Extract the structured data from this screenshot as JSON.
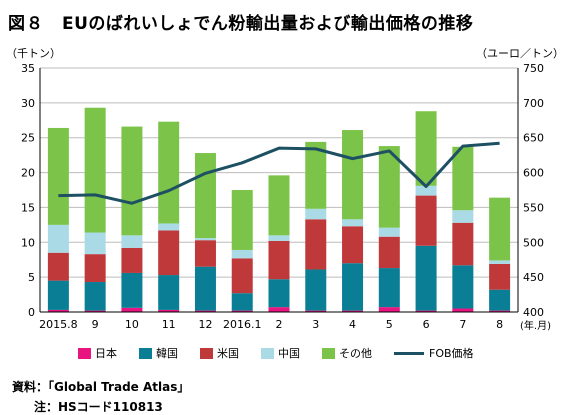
{
  "figure": {
    "number": "図８",
    "title": "EUのばれいしょでん粉輸出量および輸出価格の推移"
  },
  "units": {
    "left": "（千トン）",
    "right": "（ユーロ／トン）"
  },
  "chart_data": {
    "type": "bar",
    "stacked": true,
    "categories": [
      "2015.8",
      "9",
      "10",
      "11",
      "12",
      "2016.1",
      "2",
      "3",
      "4",
      "5",
      "6",
      "7",
      "8"
    ],
    "x_unit_label": "(年.月)",
    "ylim": [
      0,
      35
    ],
    "yticks": [
      0,
      5,
      10,
      15,
      20,
      25,
      30,
      35
    ],
    "y2lim": [
      400,
      750
    ],
    "y2ticks": [
      400,
      450,
      500,
      550,
      600,
      650,
      700,
      750
    ],
    "grid": true,
    "series": [
      {
        "name": "日本",
        "color": "#e8147f",
        "values": [
          0.3,
          0.2,
          0.6,
          0.3,
          0.2,
          0.2,
          0.7,
          0.2,
          0.2,
          0.7,
          0.2,
          0.5,
          0.2
        ]
      },
      {
        "name": "韓国",
        "color": "#0a7e95",
        "values": [
          4.2,
          4.1,
          5.0,
          5.0,
          6.3,
          2.5,
          4.0,
          5.9,
          6.8,
          5.6,
          9.3,
          6.2,
          3.0
        ]
      },
      {
        "name": "米国",
        "color": "#c0393a",
        "values": [
          4.0,
          4.0,
          3.6,
          6.4,
          3.8,
          5.0,
          5.5,
          7.2,
          5.3,
          4.5,
          7.2,
          6.1,
          3.7
        ]
      },
      {
        "name": "中国",
        "color": "#a9dae5",
        "values": [
          4.0,
          3.1,
          1.8,
          1.0,
          0.3,
          1.2,
          0.8,
          1.5,
          1.0,
          1.3,
          1.4,
          1.8,
          0.5
        ]
      },
      {
        "name": "その他",
        "color": "#7cc34a",
        "values": [
          13.9,
          17.9,
          15.6,
          14.6,
          12.2,
          8.6,
          8.6,
          9.6,
          12.8,
          11.7,
          10.7,
          9.1,
          9.0
        ]
      }
    ],
    "line": {
      "name": "FOB価格",
      "color": "#1d5063",
      "axis": "right",
      "values": [
        567,
        568,
        556,
        574,
        599,
        614,
        635,
        634,
        620,
        631,
        580,
        638,
        642
      ]
    }
  },
  "source": "資料：「Global Trade Atlas」",
  "note": "注：HSコード110813"
}
